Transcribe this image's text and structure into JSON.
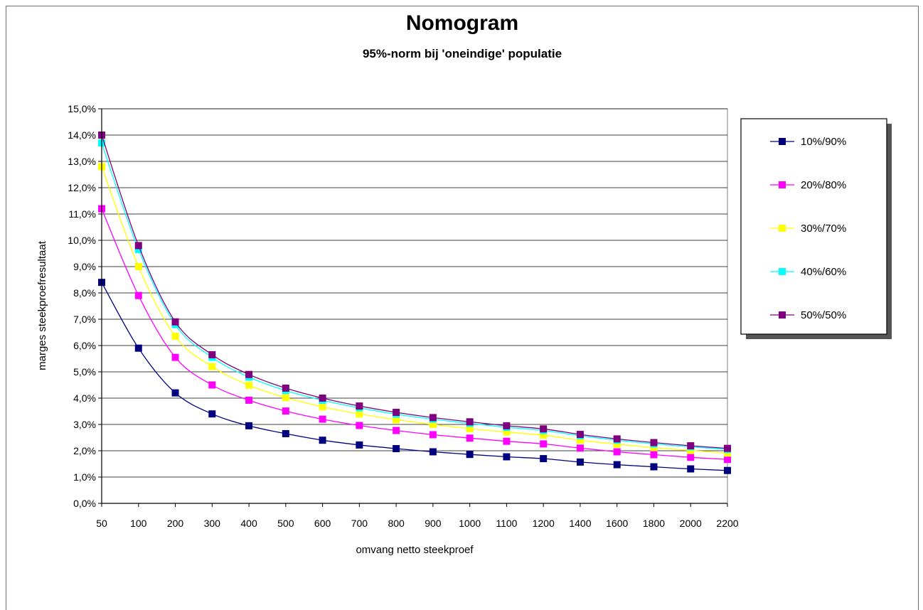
{
  "chart_data": {
    "type": "line",
    "title": "Nomogram",
    "subtitle": "95%-norm bij 'oneindige' populatie",
    "xlabel": "omvang netto steekproef",
    "ylabel": "marges steekproefresultaat",
    "categories": [
      "50",
      "100",
      "200",
      "300",
      "400",
      "500",
      "600",
      "700",
      "800",
      "900",
      "1000",
      "1100",
      "1200",
      "1400",
      "1600",
      "1800",
      "2000",
      "2200"
    ],
    "y_ticks": [
      "0,0%",
      "1,0%",
      "2,0%",
      "3,0%",
      "4,0%",
      "5,0%",
      "6,0%",
      "7,0%",
      "8,0%",
      "9,0%",
      "10,0%",
      "11,0%",
      "12,0%",
      "13,0%",
      "14,0%",
      "15,0%"
    ],
    "ylim": [
      0,
      15
    ],
    "grid": true,
    "legend_position": "right",
    "series": [
      {
        "name": "10%/90%",
        "color": "#00007f",
        "values": [
          8.4,
          5.9,
          4.2,
          3.4,
          2.95,
          2.65,
          2.4,
          2.22,
          2.08,
          1.96,
          1.86,
          1.77,
          1.7,
          1.57,
          1.47,
          1.39,
          1.31,
          1.25
        ]
      },
      {
        "name": "20%/80%",
        "color": "#ff00ff",
        "values": [
          11.2,
          7.9,
          5.55,
          4.5,
          3.92,
          3.51,
          3.2,
          2.96,
          2.77,
          2.61,
          2.48,
          2.36,
          2.26,
          2.1,
          1.96,
          1.85,
          1.75,
          1.67
        ]
      },
      {
        "name": "30%/70%",
        "color": "#ffff00",
        "values": [
          12.8,
          9.0,
          6.35,
          5.2,
          4.49,
          4.02,
          3.67,
          3.4,
          3.18,
          3.0,
          2.84,
          2.71,
          2.59,
          2.4,
          2.25,
          2.12,
          2.01,
          1.91
        ]
      },
      {
        "name": "40%/60%",
        "color": "#00ffff",
        "values": [
          13.7,
          9.65,
          6.8,
          5.55,
          4.8,
          4.29,
          3.92,
          3.63,
          3.39,
          3.2,
          3.04,
          2.89,
          2.77,
          2.57,
          2.4,
          2.26,
          2.15,
          2.05
        ]
      },
      {
        "name": "50%/50%",
        "color": "#7f007f",
        "values": [
          14.0,
          9.8,
          6.9,
          5.65,
          4.9,
          4.38,
          4.0,
          3.7,
          3.46,
          3.26,
          3.1,
          2.95,
          2.83,
          2.62,
          2.45,
          2.31,
          2.19,
          2.09
        ]
      }
    ]
  }
}
